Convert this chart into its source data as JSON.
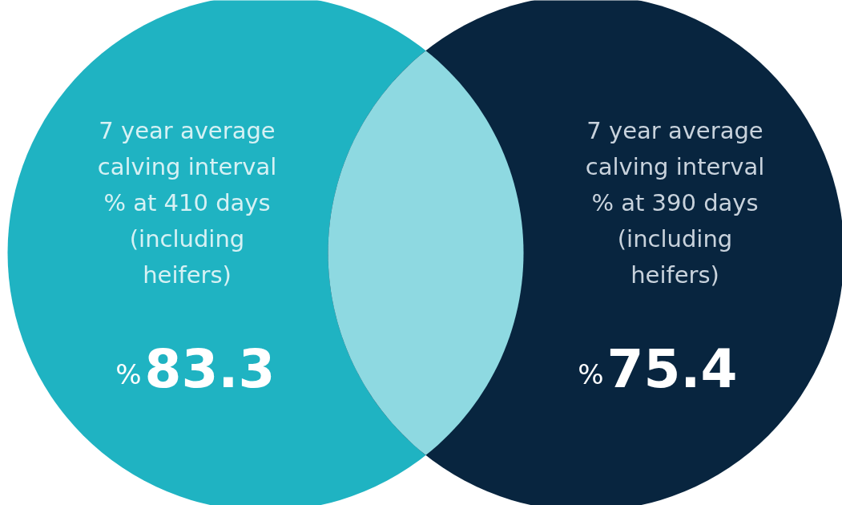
{
  "chart_data": {
    "type": "other",
    "categories": [
      "7 year average\ncalving interval\n% at 410 days\n(including\nheifers)",
      "7 year average\ncalving interval\n% at 390 days\n(including\nheifers)"
    ],
    "values": [
      83.3,
      75.4
    ],
    "data_labels": true,
    "annotations": [
      "%",
      "%"
    ],
    "colors": [
      "#1fb3c2",
      "#08253f"
    ]
  }
}
